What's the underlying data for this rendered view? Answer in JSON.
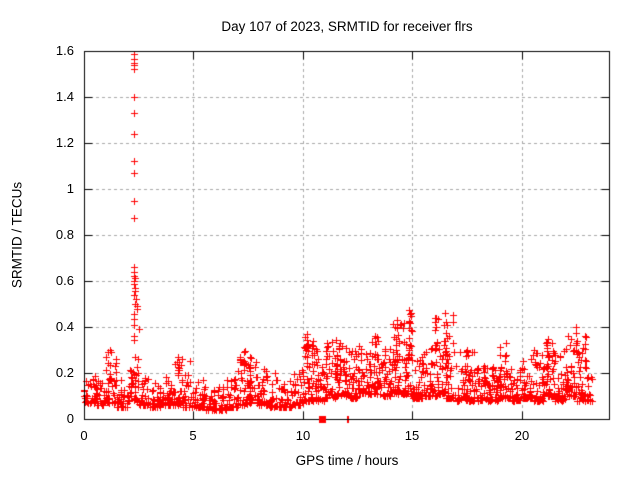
{
  "chart_data": {
    "type": "scatter",
    "title": "Day 107 of 2023, SRMTID for receiver flrs",
    "xlabel": "GPS time / hours",
    "ylabel": "SRMTID / TECUs",
    "xlim": [
      0,
      24
    ],
    "ylim": [
      0,
      1.6
    ],
    "xticks": [
      0,
      5,
      10,
      15,
      20
    ],
    "xtick_labels": [
      "0",
      "5",
      "10",
      "15",
      "20"
    ],
    "yticks": [
      0,
      0.2,
      0.4,
      0.6,
      0.8,
      1,
      1.2,
      1.4,
      1.6
    ],
    "ytick_labels": [
      "0",
      "0.2",
      "0.4",
      "0.6",
      "0.8",
      "1",
      "1.2",
      "1.4",
      "1.6"
    ],
    "grid": true,
    "legend": "none",
    "marker": "plus",
    "point_color": "#ff0000",
    "grid_color": "#a8a8a8",
    "frame_color": "#000000",
    "seed": 107,
    "band_bins_format": "x_start,x_end,y_min,y_max,n_points (noisy scatter band)",
    "band_bins": [
      [
        0.0,
        0.5,
        0.07,
        0.2,
        30
      ],
      [
        0.5,
        1.0,
        0.06,
        0.19,
        30
      ],
      [
        1.0,
        1.5,
        0.07,
        0.3,
        32
      ],
      [
        1.5,
        2.0,
        0.05,
        0.18,
        30
      ],
      [
        2.0,
        2.5,
        0.08,
        0.33,
        34
      ],
      [
        2.5,
        3.0,
        0.06,
        0.18,
        30
      ],
      [
        3.0,
        3.5,
        0.05,
        0.17,
        30
      ],
      [
        3.5,
        4.0,
        0.06,
        0.22,
        30
      ],
      [
        4.0,
        4.5,
        0.06,
        0.27,
        32
      ],
      [
        4.5,
        5.0,
        0.05,
        0.26,
        30
      ],
      [
        5.0,
        5.5,
        0.05,
        0.18,
        30
      ],
      [
        5.5,
        6.0,
        0.04,
        0.15,
        30
      ],
      [
        6.0,
        6.5,
        0.04,
        0.15,
        30
      ],
      [
        6.5,
        7.0,
        0.05,
        0.18,
        30
      ],
      [
        7.0,
        7.5,
        0.06,
        0.29,
        34
      ],
      [
        7.5,
        8.0,
        0.07,
        0.28,
        34
      ],
      [
        8.0,
        8.5,
        0.06,
        0.23,
        32
      ],
      [
        8.5,
        9.0,
        0.05,
        0.21,
        30
      ],
      [
        9.0,
        9.5,
        0.05,
        0.18,
        30
      ],
      [
        9.5,
        10.0,
        0.06,
        0.22,
        30
      ],
      [
        10.0,
        10.5,
        0.08,
        0.37,
        36
      ],
      [
        10.5,
        11.0,
        0.08,
        0.31,
        36
      ],
      [
        11.0,
        11.5,
        0.09,
        0.34,
        38
      ],
      [
        11.5,
        12.0,
        0.1,
        0.35,
        38
      ],
      [
        12.0,
        12.5,
        0.09,
        0.3,
        38
      ],
      [
        12.5,
        13.0,
        0.11,
        0.32,
        38
      ],
      [
        13.0,
        13.5,
        0.11,
        0.36,
        38
      ],
      [
        13.5,
        14.0,
        0.1,
        0.31,
        38
      ],
      [
        14.0,
        14.5,
        0.11,
        0.43,
        40
      ],
      [
        14.5,
        15.0,
        0.11,
        0.48,
        40
      ],
      [
        15.0,
        15.5,
        0.09,
        0.28,
        38
      ],
      [
        15.5,
        16.0,
        0.1,
        0.33,
        38
      ],
      [
        16.0,
        16.5,
        0.1,
        0.45,
        38
      ],
      [
        16.5,
        17.0,
        0.09,
        0.46,
        36
      ],
      [
        17.0,
        17.5,
        0.08,
        0.3,
        36
      ],
      [
        17.5,
        18.0,
        0.08,
        0.3,
        36
      ],
      [
        18.0,
        18.5,
        0.08,
        0.26,
        36
      ],
      [
        18.5,
        19.0,
        0.08,
        0.25,
        36
      ],
      [
        19.0,
        19.5,
        0.09,
        0.33,
        36
      ],
      [
        19.5,
        20.0,
        0.08,
        0.25,
        36
      ],
      [
        20.0,
        20.5,
        0.09,
        0.28,
        36
      ],
      [
        20.5,
        21.0,
        0.08,
        0.3,
        36
      ],
      [
        21.0,
        21.5,
        0.1,
        0.35,
        38
      ],
      [
        21.5,
        22.0,
        0.08,
        0.3,
        36
      ],
      [
        22.0,
        22.5,
        0.1,
        0.4,
        36
      ],
      [
        22.5,
        23.0,
        0.08,
        0.35,
        36
      ],
      [
        23.0,
        23.25,
        0.08,
        0.22,
        16
      ]
    ],
    "peak_columns_format": "x_center,y_top,n_points (narrow tall spikes above the band)",
    "peak_columns": [
      [
        1.2,
        0.3,
        6
      ],
      [
        4.3,
        0.27,
        5
      ],
      [
        7.35,
        0.295,
        7
      ],
      [
        7.6,
        0.27,
        5
      ],
      [
        10.2,
        0.37,
        8
      ],
      [
        10.45,
        0.34,
        6
      ],
      [
        11.5,
        0.345,
        6
      ],
      [
        11.7,
        0.33,
        5
      ],
      [
        13.3,
        0.36,
        6
      ],
      [
        14.3,
        0.43,
        7
      ],
      [
        14.85,
        0.475,
        9
      ],
      [
        14.95,
        0.45,
        5
      ],
      [
        16.1,
        0.44,
        6
      ],
      [
        16.5,
        0.46,
        4
      ],
      [
        16.55,
        0.42,
        4
      ],
      [
        17.5,
        0.3,
        5
      ],
      [
        19.3,
        0.33,
        5
      ],
      [
        21.2,
        0.35,
        6
      ],
      [
        21.4,
        0.33,
        4
      ],
      [
        22.5,
        0.4,
        5
      ],
      [
        22.9,
        0.36,
        4
      ]
    ],
    "spike_points_format": "x,y explicit outlier points of the large spike near hour 2.3",
    "spike_points": [
      [
        2.27,
        1.585
      ],
      [
        2.28,
        1.565
      ],
      [
        2.27,
        1.55
      ],
      [
        2.29,
        1.54
      ],
      [
        2.27,
        1.52
      ],
      [
        2.28,
        1.4
      ],
      [
        2.27,
        1.33
      ],
      [
        2.28,
        1.24
      ],
      [
        2.27,
        1.12
      ],
      [
        2.28,
        1.07
      ],
      [
        2.27,
        0.95
      ],
      [
        2.28,
        0.875
      ],
      [
        2.27,
        0.66
      ],
      [
        2.3,
        0.64
      ],
      [
        2.28,
        0.62
      ],
      [
        2.33,
        0.615
      ],
      [
        2.3,
        0.6
      ],
      [
        2.28,
        0.585
      ],
      [
        2.35,
        0.57
      ],
      [
        2.32,
        0.555
      ],
      [
        2.3,
        0.54
      ],
      [
        2.38,
        0.52
      ],
      [
        2.35,
        0.5
      ],
      [
        2.4,
        0.49
      ],
      [
        2.42,
        0.48
      ],
      [
        2.28,
        0.455
      ],
      [
        2.3,
        0.435
      ],
      [
        2.27,
        0.41
      ],
      [
        2.5,
        0.39
      ],
      [
        2.3,
        0.36
      ],
      [
        2.27,
        0.345
      ]
    ],
    "zero_markers": {
      "square_x": [
        10.87
      ],
      "plus_x": [
        12.02,
        12.08
      ]
    }
  }
}
